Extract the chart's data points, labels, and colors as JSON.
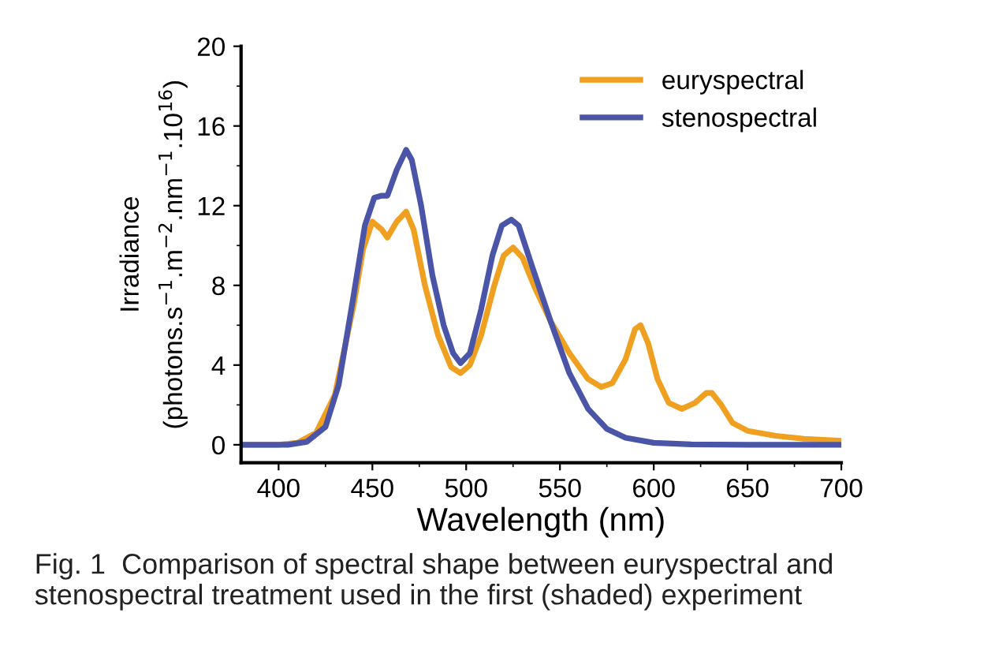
{
  "chart_data": {
    "type": "line",
    "xlabel": "Wavelength (nm)",
    "ylabel": "Irradiance\n(photons.s$^{−1}$.m$^{−2}$.nm$^{−1}$.10$^{16}$)",
    "xlim": [
      380,
      700
    ],
    "xticks": [
      400,
      450,
      500,
      550,
      600,
      650,
      700
    ],
    "ylim": [
      -0.9,
      20
    ],
    "yticks": [
      0,
      4,
      8,
      12,
      16,
      20
    ],
    "legend": "top right",
    "grid": false,
    "series": [
      {
        "name": "euryspectral",
        "color": "#f0a020",
        "x": [
          380,
          400,
          410,
          420,
          430,
          440,
          445,
          450,
          455,
          458,
          463,
          468,
          472,
          478,
          485,
          492,
          497,
          502,
          508,
          515,
          520,
          525,
          530,
          537,
          545,
          555,
          565,
          572,
          578,
          585,
          590,
          593,
          597,
          602,
          608,
          615,
          622,
          628,
          631,
          636,
          642,
          650,
          665,
          680,
          700
        ],
        "values": [
          0,
          0,
          0.1,
          0.6,
          2.5,
          7,
          9.8,
          11.2,
          10.8,
          10.4,
          11.2,
          11.7,
          10.8,
          8,
          5.5,
          3.9,
          3.6,
          4.0,
          5.5,
          8,
          9.5,
          9.9,
          9.4,
          7.8,
          6.2,
          4.6,
          3.3,
          2.9,
          3.1,
          4.3,
          5.8,
          6.0,
          5.1,
          3.3,
          2.1,
          1.8,
          2.1,
          2.6,
          2.6,
          2.0,
          1.1,
          0.7,
          0.45,
          0.3,
          0.2
        ]
      },
      {
        "name": "stenospectral",
        "color": "#4a55a8",
        "x": [
          380,
          405,
          415,
          425,
          432,
          440,
          446,
          451,
          455,
          458,
          463,
          468,
          471,
          476,
          482,
          488,
          493,
          497,
          502,
          508,
          514,
          519,
          524,
          528,
          535,
          545,
          555,
          565,
          575,
          585,
          600,
          620,
          650,
          700
        ],
        "values": [
          0,
          0,
          0.15,
          0.9,
          3,
          7.5,
          11,
          12.4,
          12.5,
          12.5,
          13.8,
          14.8,
          14.3,
          12,
          8.5,
          6,
          4.6,
          4.1,
          4.6,
          6.8,
          9.5,
          11,
          11.3,
          11,
          9,
          6.2,
          3.6,
          1.8,
          0.8,
          0.35,
          0.1,
          0.02,
          0,
          0
        ]
      }
    ],
    "annotations": [
      "Fig. 1  Comparison of spectral shape between euryspectral and stenospectral treatment used in the first (shaded) experiment"
    ]
  }
}
